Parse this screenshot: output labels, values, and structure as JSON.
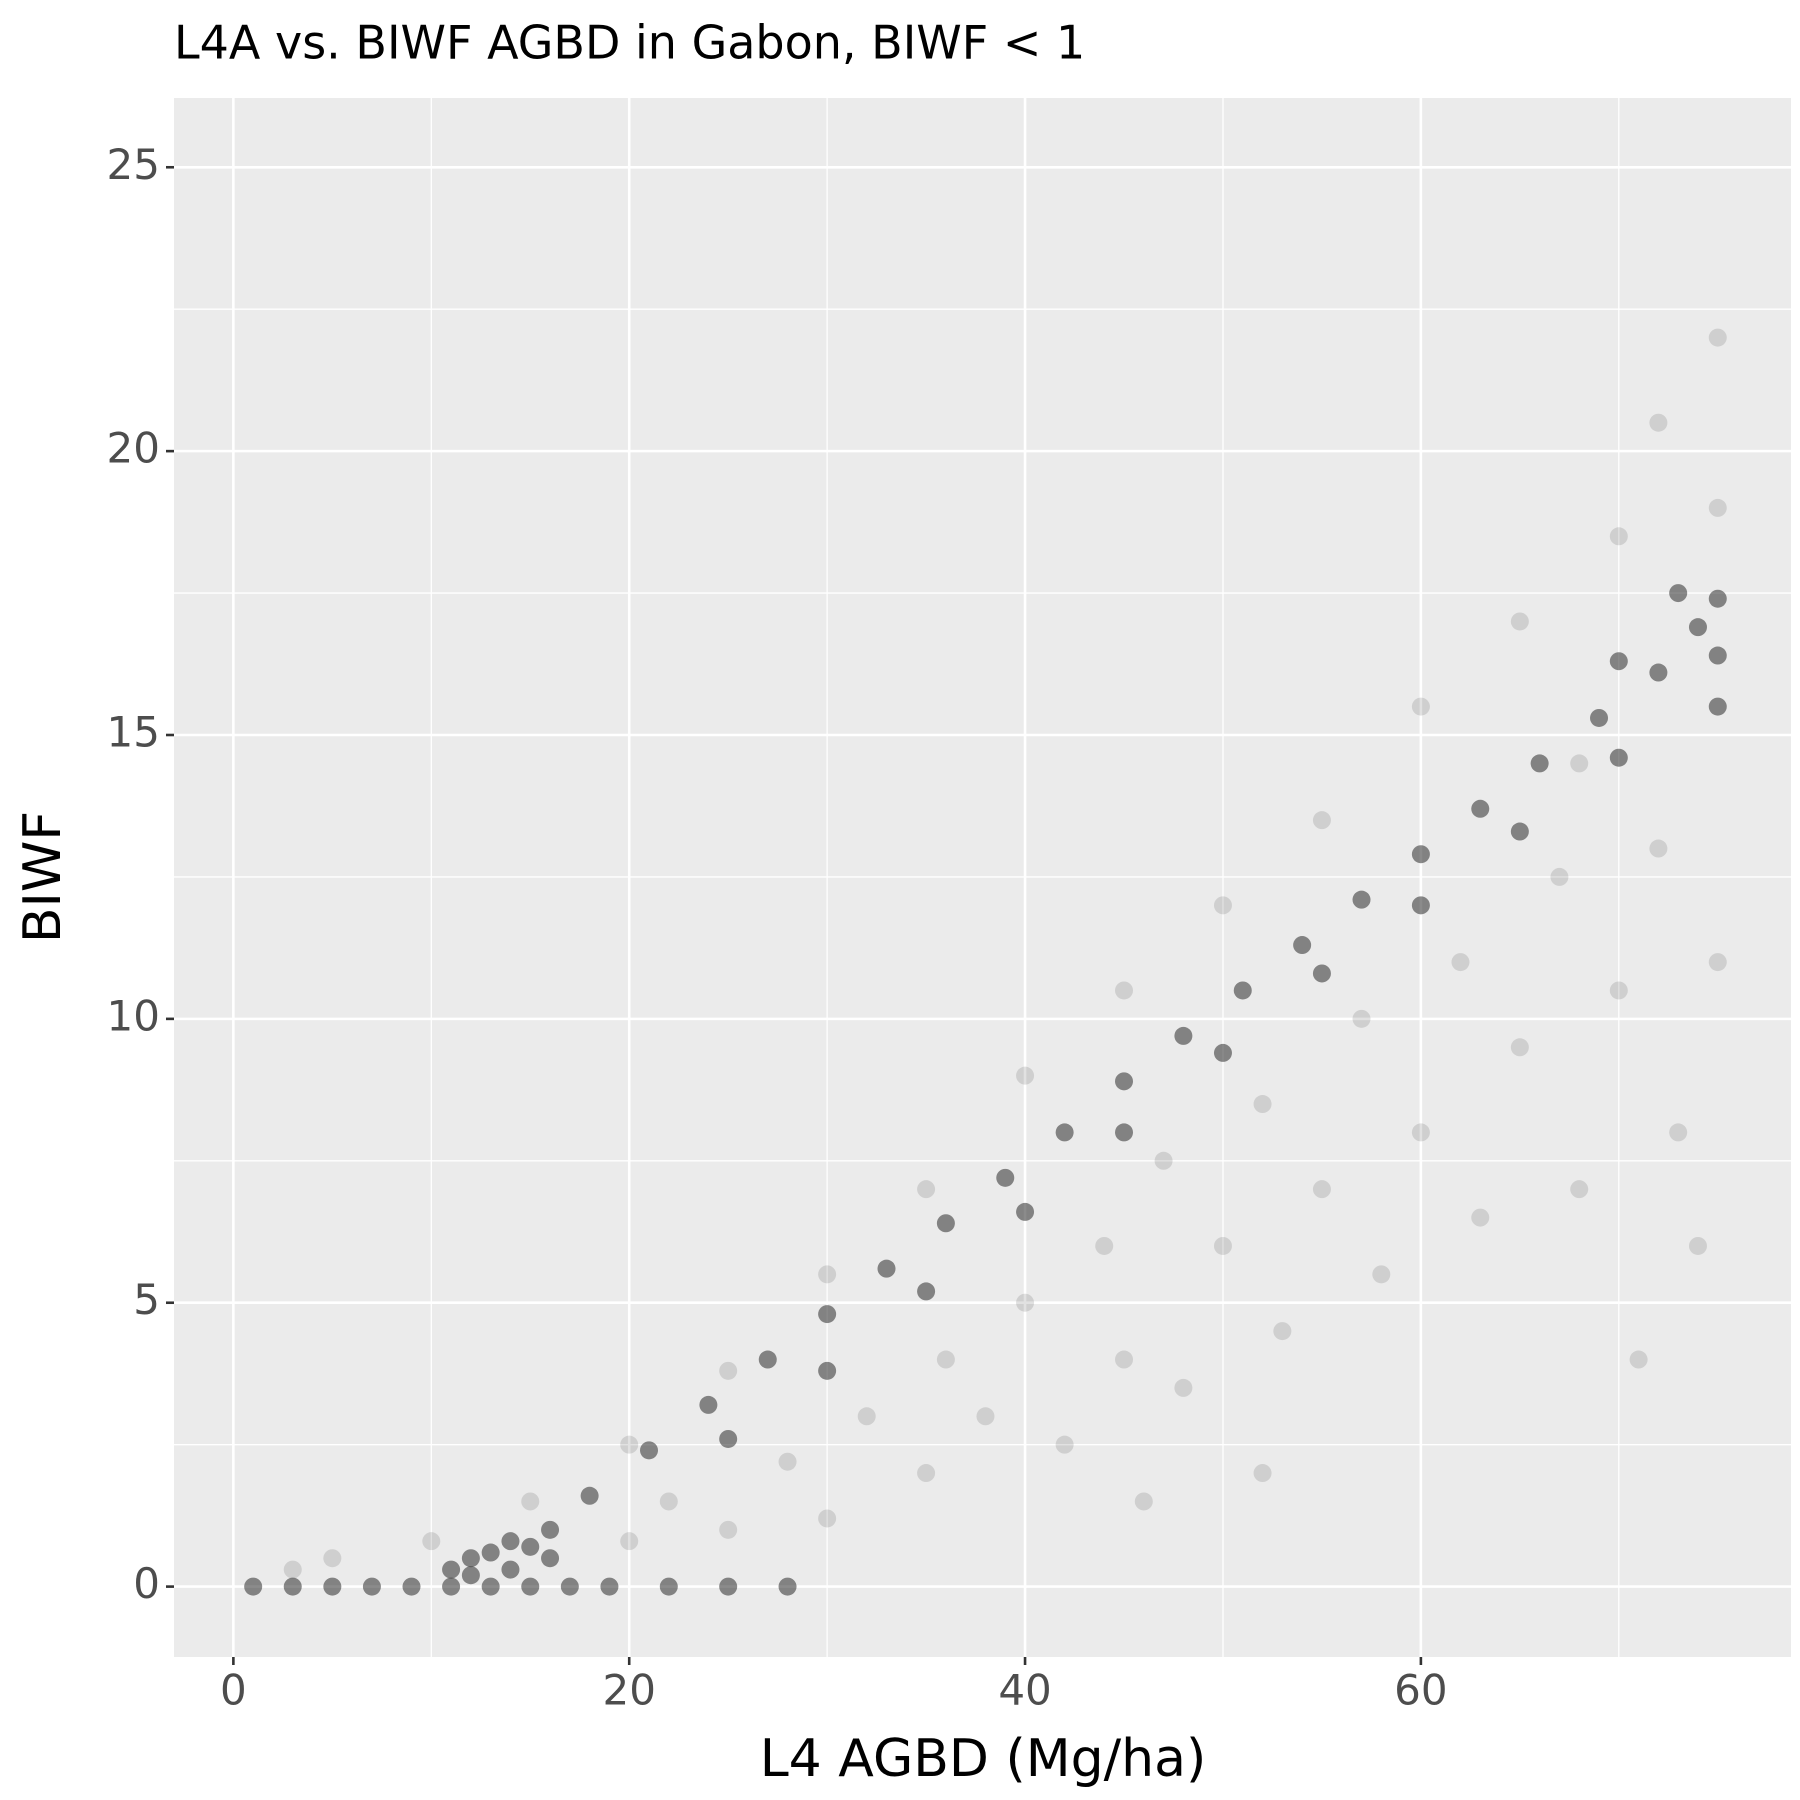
{
  "chart_data": {
    "type": "scatter",
    "title": "L4A vs. BIWF AGBD in Gabon, BIWF < 1",
    "x_label": "L4 AGBD (Mg/ha)",
    "y_label": "BIWF",
    "xlim": [
      -3.0,
      78.7
    ],
    "ylim": [
      -1.24,
      26.22
    ],
    "xticks": [
      0,
      20,
      40,
      60
    ],
    "yticks": [
      0,
      5,
      10,
      15,
      20,
      25
    ],
    "x_minor_grid": [
      10,
      30,
      50,
      70
    ],
    "y_minor_grid": [
      2.5,
      7.5,
      12.5,
      17.5,
      22.5
    ],
    "grid": true,
    "panel_color": "#ebebeb",
    "series": [
      {
        "color": "#2b2b2b",
        "opacity": 0.55,
        "x": [
          1,
          3,
          5,
          7,
          9,
          11,
          13,
          15,
          17,
          19,
          22,
          25,
          28,
          11,
          12,
          13,
          14,
          15,
          16,
          12,
          14,
          16,
          18,
          21,
          24,
          27,
          30,
          33,
          36,
          39,
          42,
          45,
          48,
          51,
          54,
          57,
          60,
          63,
          66,
          69,
          72,
          74,
          75,
          75,
          73,
          70,
          25,
          30,
          35,
          40,
          45,
          50,
          55,
          60,
          65,
          70,
          75
        ],
        "y": [
          0,
          0,
          0,
          0,
          0,
          0,
          0,
          0,
          0,
          0,
          0,
          0,
          0,
          0.3,
          0.5,
          0.6,
          0.8,
          0.7,
          0.5,
          0.2,
          0.3,
          1.0,
          1.6,
          2.4,
          3.2,
          4.0,
          4.8,
          5.6,
          6.4,
          7.2,
          8.0,
          8.9,
          9.7,
          10.5,
          11.3,
          12.1,
          12.9,
          13.7,
          14.5,
          15.3,
          16.1,
          16.9,
          17.4,
          16.4,
          17.5,
          16.3,
          2.6,
          3.8,
          5.2,
          6.6,
          8.0,
          9.4,
          10.8,
          12.0,
          13.3,
          14.6,
          15.5
        ]
      },
      {
        "color": "#2b2b2b",
        "opacity": 0.14,
        "x": [
          20,
          22,
          25,
          28,
          30,
          32,
          35,
          36,
          38,
          40,
          42,
          44,
          45,
          47,
          48,
          50,
          52,
          53,
          55,
          57,
          58,
          60,
          62,
          63,
          65,
          67,
          68,
          70,
          72,
          73,
          75,
          75,
          72,
          70,
          65,
          60,
          55,
          50,
          45,
          40,
          35,
          30,
          25,
          20,
          15,
          10,
          5,
          3,
          75,
          74,
          71,
          68,
          52,
          46
        ],
        "y": [
          0.8,
          1.5,
          1.0,
          2.2,
          1.2,
          3.0,
          2.0,
          4.0,
          3.0,
          5.0,
          2.5,
          6.0,
          4.0,
          7.5,
          3.5,
          6.0,
          8.5,
          4.5,
          7.0,
          10.0,
          5.5,
          8.0,
          11.0,
          6.5,
          9.5,
          12.5,
          7.0,
          10.5,
          13.0,
          8.0,
          11.0,
          19.0,
          20.5,
          18.5,
          17.0,
          15.5,
          13.5,
          12.0,
          10.5,
          9.0,
          7.0,
          5.5,
          3.8,
          2.5,
          1.5,
          0.8,
          0.5,
          0.3,
          22,
          6,
          4,
          14.5,
          2,
          1.5
        ]
      }
    ]
  }
}
